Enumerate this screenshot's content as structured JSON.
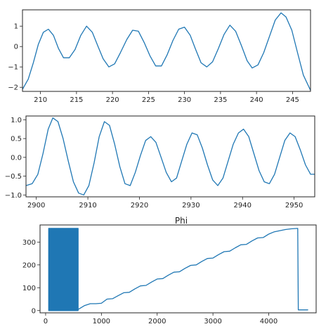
{
  "figure": {
    "line_color": "#1f77b4",
    "axes_color": "#222222",
    "background": "#ffffff"
  },
  "chart_data": [
    {
      "type": "line",
      "title": "",
      "xlabel": "",
      "ylabel": "",
      "xlim": [
        207.5,
        247.5
      ],
      "ylim": [
        -2.2,
        1.8
      ],
      "xticks": [
        210,
        215,
        220,
        225,
        230,
        235,
        240,
        245
      ],
      "yticks": [
        -2,
        -1,
        0,
        1
      ],
      "xtick_labels": [
        "210",
        "215",
        "220",
        "225",
        "230",
        "235",
        "240",
        "245"
      ],
      "ytick_labels": [
        "−2",
        "−1",
        "0",
        "1"
      ],
      "grid": false,
      "series": [
        {
          "x": [
            207.5,
            208.3,
            209.0,
            209.7,
            210.4,
            211.1,
            211.8,
            212.5,
            213.2,
            214.0,
            214.8,
            215.6,
            216.4,
            217.2,
            218.0,
            218.7,
            219.5,
            220.3,
            221.1,
            222.0,
            222.8,
            223.6,
            224.4,
            225.2,
            226.0,
            226.8,
            227.6,
            228.4,
            229.2,
            230.0,
            230.8,
            231.5,
            232.3,
            233.1,
            233.9,
            234.7,
            235.5,
            236.3,
            237.1,
            237.9,
            238.7,
            239.4,
            240.2,
            241.0,
            241.8,
            242.6,
            243.4,
            244.1,
            244.9,
            245.7,
            246.5,
            247.5
          ],
          "y": [
            -2.1,
            -1.6,
            -0.8,
            0.1,
            0.7,
            0.85,
            0.55,
            -0.1,
            -0.55,
            -0.55,
            -0.15,
            0.55,
            1.0,
            0.7,
            0.0,
            -0.6,
            -1.0,
            -0.85,
            -0.3,
            0.35,
            0.8,
            0.75,
            0.2,
            -0.45,
            -0.95,
            -0.95,
            -0.4,
            0.3,
            0.85,
            0.95,
            0.55,
            -0.1,
            -0.8,
            -1.0,
            -0.75,
            -0.1,
            0.6,
            1.05,
            0.75,
            0.05,
            -0.7,
            -1.05,
            -0.9,
            -0.3,
            0.5,
            1.3,
            1.65,
            1.45,
            0.8,
            -0.3,
            -1.4,
            -2.15
          ]
        }
      ]
    },
    {
      "type": "line",
      "title": "",
      "xlabel": "",
      "ylabel": "",
      "xlim": [
        2898,
        2954
      ],
      "ylim": [
        -1.05,
        1.1
      ],
      "xticks": [
        2900,
        2910,
        2920,
        2930,
        2940,
        2950
      ],
      "yticks": [
        -1.0,
        -0.5,
        0.0,
        0.5,
        1.0
      ],
      "xtick_labels": [
        "2900",
        "2910",
        "2920",
        "2930",
        "2940",
        "2950"
      ],
      "ytick_labels": [
        "−1.0",
        "−0.5",
        "0.0",
        "0.5",
        "1.0"
      ],
      "grid": false,
      "series": [
        {
          "x": [
            2898,
            2899.2,
            2900.3,
            2901.3,
            2902.3,
            2903.2,
            2904.2,
            2905.2,
            2906.2,
            2907.2,
            2908.2,
            2909.2,
            2910.2,
            2911.2,
            2912.2,
            2913.2,
            2914.2,
            2915.2,
            2916.2,
            2917.2,
            2918.2,
            2919.2,
            2920.2,
            2921.2,
            2922.2,
            2923.2,
            2924.2,
            2925.2,
            2926.2,
            2927.2,
            2928.2,
            2929.2,
            2930.2,
            2931.2,
            2932.2,
            2933.2,
            2934.2,
            2935.2,
            2936.2,
            2937.2,
            2938.2,
            2939.2,
            2940.2,
            2941.2,
            2942.2,
            2943.2,
            2944.2,
            2945.2,
            2946.2,
            2947.2,
            2948.2,
            2949.2,
            2950.2,
            2951.2,
            2952.2,
            2953.2,
            2954
          ],
          "y": [
            -0.75,
            -0.7,
            -0.45,
            0.1,
            0.75,
            1.05,
            0.95,
            0.5,
            -0.1,
            -0.65,
            -0.95,
            -1.0,
            -0.75,
            -0.15,
            0.55,
            0.95,
            0.85,
            0.35,
            -0.25,
            -0.7,
            -0.75,
            -0.4,
            0.05,
            0.45,
            0.55,
            0.4,
            0.0,
            -0.4,
            -0.65,
            -0.55,
            -0.1,
            0.35,
            0.65,
            0.6,
            0.25,
            -0.2,
            -0.6,
            -0.75,
            -0.55,
            -0.1,
            0.35,
            0.65,
            0.75,
            0.55,
            0.1,
            -0.35,
            -0.65,
            -0.7,
            -0.45,
            0.0,
            0.45,
            0.65,
            0.55,
            0.2,
            -0.2,
            -0.45,
            -0.45
          ]
        }
      ]
    },
    {
      "type": "line",
      "title": "Phi",
      "xlabel": "",
      "ylabel": "",
      "xlim": [
        -100,
        4850
      ],
      "ylim": [
        -10,
        375
      ],
      "xticks": [
        0,
        1000,
        2000,
        3000,
        4000
      ],
      "yticks": [
        0,
        100,
        200,
        300
      ],
      "xtick_labels": [
        "0",
        "1000",
        "2000",
        "3000",
        "4000"
      ],
      "ytick_labels": [
        "0",
        "100",
        "200",
        "300"
      ],
      "grid": false,
      "noisy_block": {
        "x_start": 55,
        "x_end": 585,
        "y_low": 0,
        "y_high": 360
      },
      "series": [
        {
          "x": [
            585,
            700,
            800,
            900,
            1000,
            1100,
            1200,
            1300,
            1400,
            1500,
            1600,
            1700,
            1800,
            1900,
            2000,
            2100,
            2200,
            2300,
            2400,
            2500,
            2600,
            2700,
            2800,
            2900,
            3000,
            3100,
            3200,
            3300,
            3400,
            3500,
            3600,
            3700,
            3800,
            3900,
            4000,
            4100,
            4200,
            4300,
            4400,
            4520,
            4530,
            4540,
            4700
          ],
          "y": [
            5,
            22,
            30,
            30,
            32,
            50,
            52,
            65,
            78,
            80,
            95,
            108,
            110,
            125,
            138,
            140,
            155,
            168,
            170,
            185,
            198,
            200,
            215,
            228,
            230,
            245,
            258,
            260,
            275,
            288,
            290,
            305,
            318,
            320,
            335,
            345,
            350,
            355,
            358,
            360,
            3,
            3,
            3
          ]
        }
      ]
    }
  ]
}
